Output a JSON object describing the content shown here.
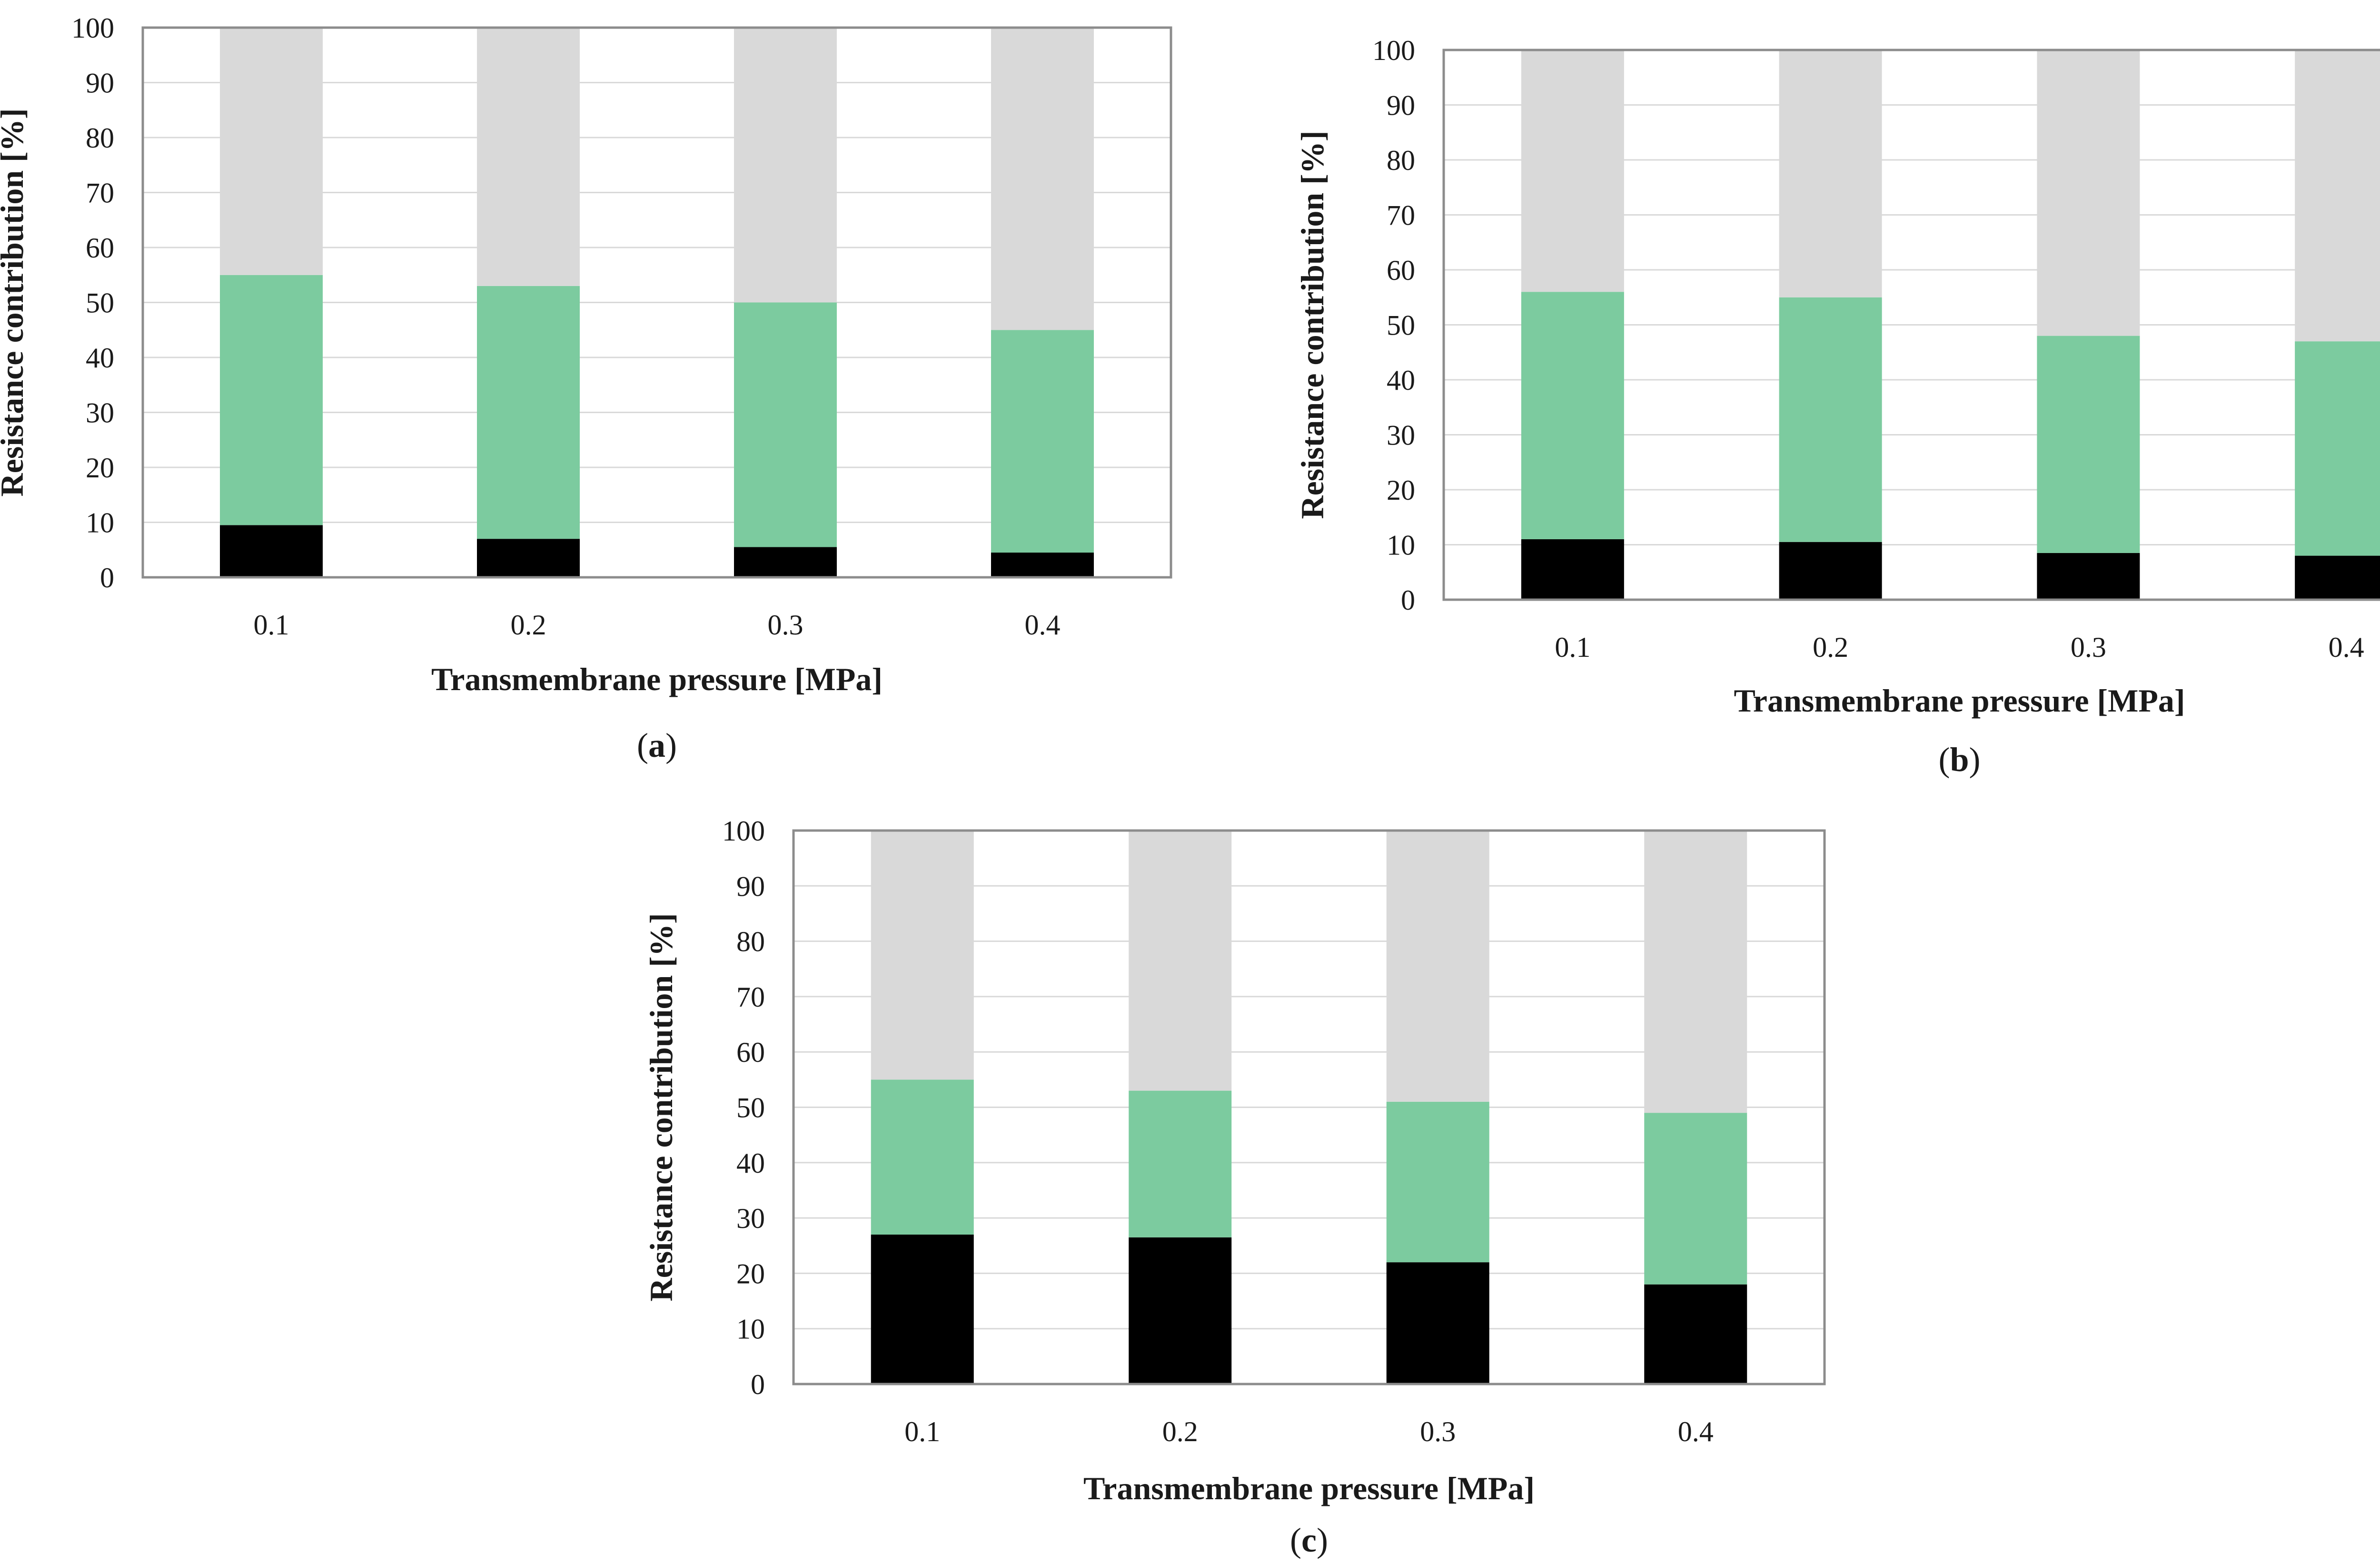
{
  "colors": {
    "bottom": "#000000",
    "middle": "#7ccb9f",
    "top": "#d9d9d9",
    "axis": "#8c8c8c",
    "grid": "#d9d9d9"
  },
  "chart_data": [
    {
      "type": "bar",
      "stacked": true,
      "percent": true,
      "panel_label": "a",
      "xlabel": "Transmembrane pressure [MPa]",
      "ylabel": "Resistance contribution [%]",
      "categories": [
        "0.1",
        "0.2",
        "0.3",
        "0.4"
      ],
      "ylim": [
        0,
        100
      ],
      "yticks": [
        "0",
        "10",
        "20",
        "30",
        "40",
        "50",
        "60",
        "70",
        "80",
        "90",
        "100"
      ],
      "grid": true,
      "series": [
        {
          "values": [
            9.5,
            7,
            5.5,
            4.5
          ]
        },
        {
          "values": [
            45.5,
            46,
            44.5,
            40.5
          ]
        },
        {
          "values": [
            45,
            47,
            50,
            55
          ]
        }
      ]
    },
    {
      "type": "bar",
      "stacked": true,
      "percent": true,
      "panel_label": "b",
      "xlabel": "Transmembrane pressure [MPa]",
      "ylabel": "Resistance contribution [%]",
      "categories": [
        "0.1",
        "0.2",
        "0.3",
        "0.4"
      ],
      "ylim": [
        0,
        100
      ],
      "yticks": [
        "0",
        "10",
        "20",
        "30",
        "40",
        "50",
        "60",
        "70",
        "80",
        "90",
        "100"
      ],
      "grid": true,
      "series": [
        {
          "values": [
            11,
            10.5,
            8.5,
            8
          ]
        },
        {
          "values": [
            45,
            44.5,
            39.5,
            39
          ]
        },
        {
          "values": [
            44,
            45,
            52,
            53
          ]
        }
      ]
    },
    {
      "type": "bar",
      "stacked": true,
      "percent": true,
      "panel_label": "c",
      "xlabel": "Transmembrane pressure [MPa]",
      "ylabel": "Resistance contribution [%]",
      "categories": [
        "0.1",
        "0.2",
        "0.3",
        "0.4"
      ],
      "ylim": [
        0,
        100
      ],
      "yticks": [
        "0",
        "10",
        "20",
        "30",
        "40",
        "50",
        "60",
        "70",
        "80",
        "90",
        "100"
      ],
      "grid": true,
      "series": [
        {
          "values": [
            27,
            26.5,
            22,
            18
          ]
        },
        {
          "values": [
            28,
            26.5,
            29,
            31
          ]
        },
        {
          "values": [
            45,
            47,
            49,
            51
          ]
        }
      ]
    }
  ]
}
